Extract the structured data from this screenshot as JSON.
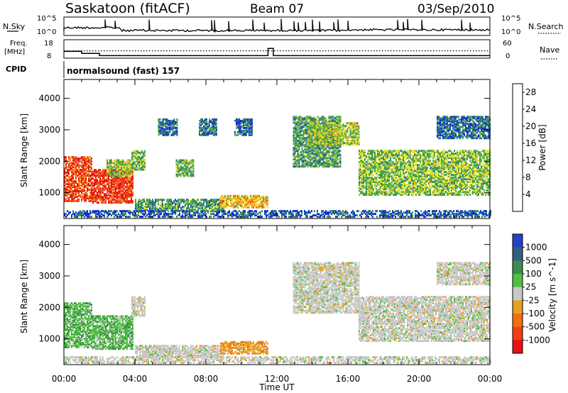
{
  "header": {
    "station": "Saskatoon (fitACF)",
    "beam": "Beam 07",
    "date": "03/Sep/2010"
  },
  "summary_panels": {
    "nsky_label": "N.Sky",
    "nsky_ticks": [
      "10^5",
      "10^0"
    ],
    "nsearch_label": "N.Search",
    "freq_label": "Freq.",
    "freq_unit": "[MHz]",
    "freq_ticks": [
      "18",
      "8"
    ],
    "nave_ticks": [
      "60",
      "0"
    ],
    "nave_label": "Nave",
    "cpid_label": "CPID",
    "cpid_text": "normalsound (fast) 157"
  },
  "chart_data": [
    {
      "type": "line",
      "title": "",
      "panel": "noise / frequency summary",
      "x_range_hours": [
        0,
        24
      ],
      "freq_mhz": {
        "x": [
          0,
          0.8,
          1.0,
          1.9,
          2.0,
          11.4,
          11.5,
          11.8,
          16.4,
          16.5,
          24
        ],
        "values": [
          11.7,
          11.7,
          10.6,
          10.6,
          9.4,
          9.4,
          13.3,
          9.4,
          9.4,
          9.4,
          9.4
        ]
      },
      "nave_reference_level": 24
    },
    {
      "type": "heatmap",
      "title": "",
      "ylabel": "Slant Range [km]",
      "xlabel": "",
      "y_ticks": [
        "1000",
        "2000",
        "3000",
        "4000"
      ],
      "ylim": [
        180,
        4600
      ],
      "colorbar": {
        "label": "Power [dB]",
        "ticks": [
          "4",
          "8",
          "12",
          "16",
          "20",
          "24",
          "28"
        ],
        "range": [
          0,
          30
        ],
        "colors": [
          "#1028e8",
          "#1c50a8",
          "#3c8c60",
          "#58b048",
          "#e8e028",
          "#f0a020",
          "#f06018",
          "#e81818"
        ]
      },
      "regions": [
        {
          "t0": 0.0,
          "t1": 1.6,
          "r0": 700,
          "r1": 2100,
          "level": 26
        },
        {
          "t0": 1.6,
          "t1": 3.9,
          "r0": 650,
          "r1": 1700,
          "level": 27
        },
        {
          "t0": 2.4,
          "t1": 3.8,
          "r0": 1500,
          "r1": 2000,
          "level": 15
        },
        {
          "t0": 3.8,
          "t1": 4.6,
          "r0": 1700,
          "r1": 2300,
          "level": 13
        },
        {
          "t0": 4.0,
          "t1": 9.0,
          "r0": 380,
          "r1": 760,
          "level": 11
        },
        {
          "t0": 6.3,
          "t1": 7.3,
          "r0": 1500,
          "r1": 2000,
          "level": 12
        },
        {
          "t0": 5.3,
          "t1": 6.4,
          "r0": 2800,
          "r1": 3300,
          "level": 7
        },
        {
          "t0": 7.6,
          "t1": 8.6,
          "r0": 2800,
          "r1": 3300,
          "level": 8
        },
        {
          "t0": 8.8,
          "t1": 11.5,
          "r0": 500,
          "r1": 880,
          "level": 19
        },
        {
          "t0": 9.6,
          "t1": 10.6,
          "r0": 2800,
          "r1": 3300,
          "level": 7
        },
        {
          "t0": 12.9,
          "t1": 15.6,
          "r0": 1800,
          "r1": 3400,
          "level": 11
        },
        {
          "t0": 13.7,
          "t1": 16.6,
          "r0": 2500,
          "r1": 3200,
          "level": 15
        },
        {
          "t0": 16.6,
          "t1": 24.0,
          "r0": 900,
          "r1": 2300,
          "level": 14
        },
        {
          "t0": 21.0,
          "t1": 24.0,
          "r0": 2700,
          "r1": 3400,
          "level": 7
        }
      ]
    },
    {
      "type": "heatmap",
      "title": "",
      "ylabel": "Slant Range [km]",
      "xlabel": "Time UT",
      "x_ticks": [
        "00:00",
        "04:00",
        "08:00",
        "12:00",
        "16:00",
        "20:00",
        "00:00"
      ],
      "y_ticks": [
        "1000",
        "2000",
        "3000",
        "4000"
      ],
      "ylim": [
        180,
        4600
      ],
      "colorbar": {
        "label": "Velocity [m s^-1]",
        "ticks": [
          "1000",
          "500",
          "100",
          "25",
          "-25",
          "-100",
          "-500",
          "-1000"
        ],
        "colors": [
          "#2840c8",
          "#306080",
          "#3c8c50",
          "#50c040",
          "#c8c8c8",
          "#e8a020",
          "#f07010",
          "#f04010",
          "#e81010"
        ]
      },
      "regions": [
        {
          "t0": 0.0,
          "t1": 1.6,
          "r0": 700,
          "r1": 2100,
          "class": "positive"
        },
        {
          "t0": 1.6,
          "t1": 3.9,
          "r0": 650,
          "r1": 1700,
          "class": "positive"
        },
        {
          "t0": 3.8,
          "t1": 4.6,
          "r0": 1700,
          "r1": 2300,
          "class": "near-zero"
        },
        {
          "t0": 4.0,
          "t1": 9.0,
          "r0": 380,
          "r1": 760,
          "class": "near-zero"
        },
        {
          "t0": 8.8,
          "t1": 11.5,
          "r0": 500,
          "r1": 880,
          "class": "negative"
        },
        {
          "t0": 12.9,
          "t1": 16.6,
          "r0": 1800,
          "r1": 3400,
          "class": "near-zero"
        },
        {
          "t0": 16.6,
          "t1": 24.0,
          "r0": 900,
          "r1": 2300,
          "class": "near-zero"
        },
        {
          "t0": 21.0,
          "t1": 24.0,
          "r0": 2700,
          "r1": 3400,
          "class": "near-zero"
        }
      ]
    }
  ]
}
